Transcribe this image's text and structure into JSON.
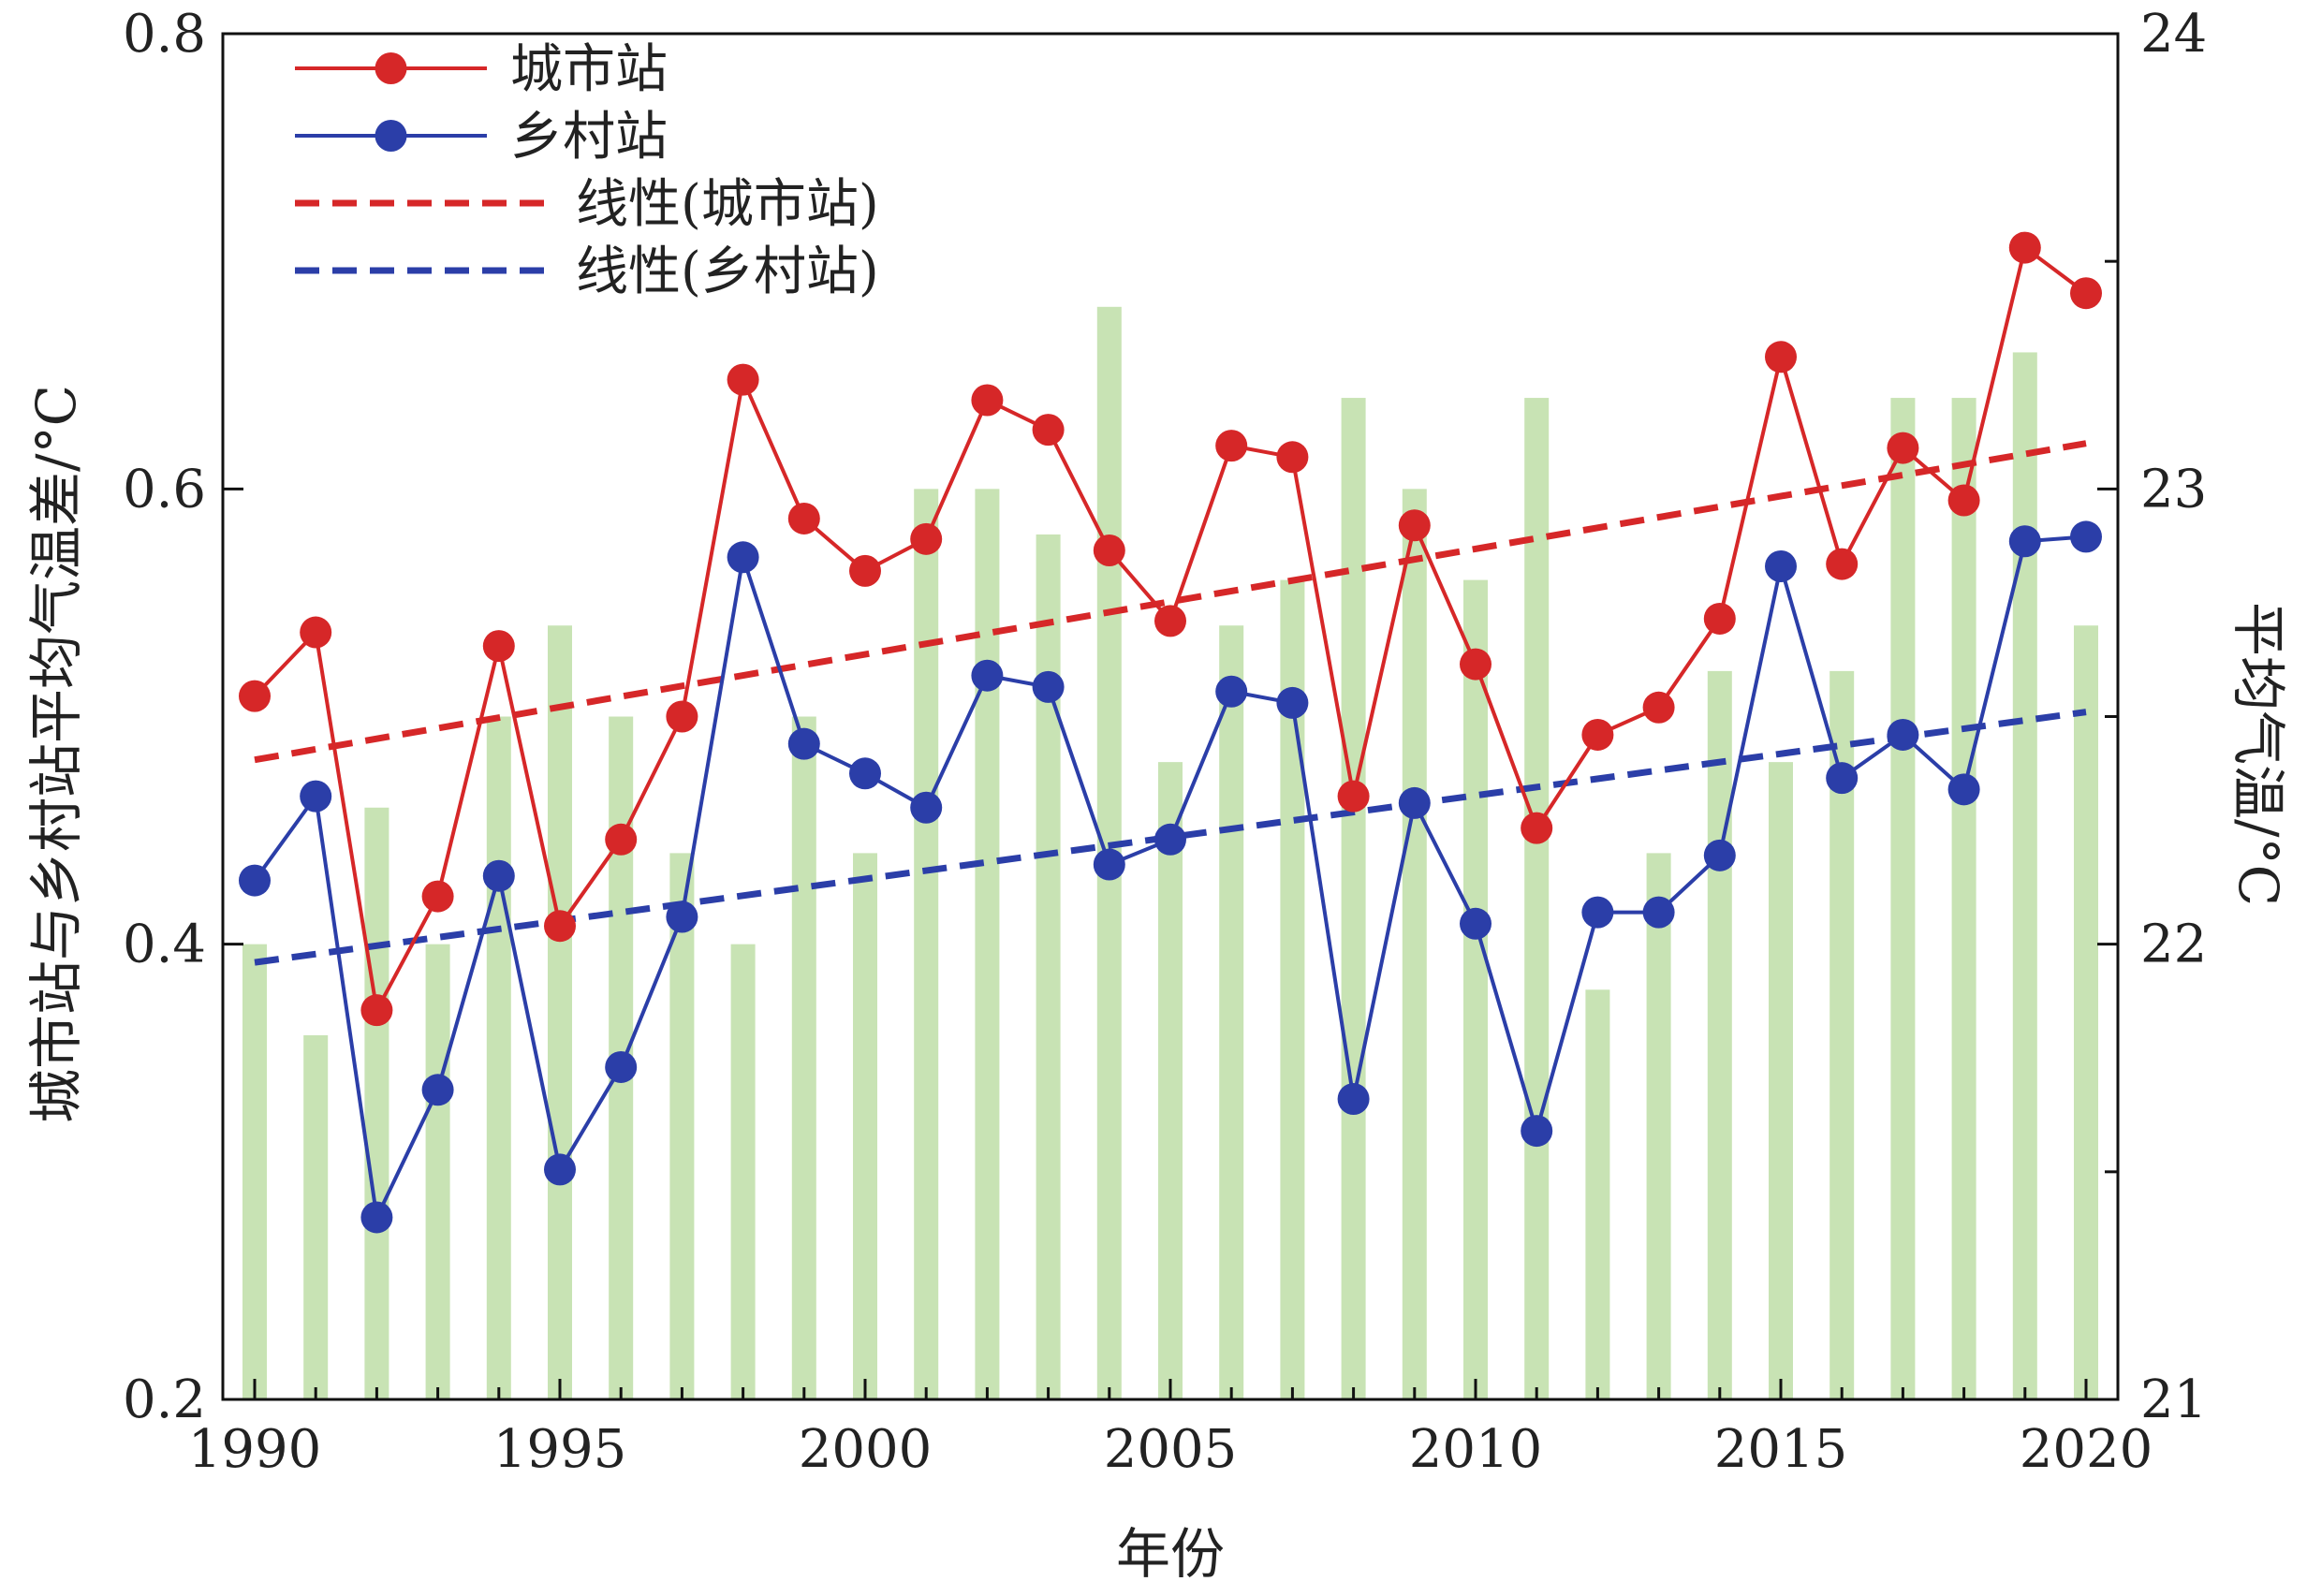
{
  "chart_data": {
    "type": "bar+line",
    "xlabel": "年份",
    "ylabel_left": "城市站与乡村站平均气温差/°C",
    "ylabel_right": "平均气温/°C",
    "x_range": [
      1990,
      2020
    ],
    "x_ticks": [
      1990,
      1995,
      2000,
      2005,
      2010,
      2015,
      2020
    ],
    "left_axis": {
      "range": [
        0.2,
        0.8
      ],
      "ticks": [
        0.2,
        0.4,
        0.6,
        0.8
      ],
      "tick_labels": [
        "0.2",
        "0.4",
        "0.6",
        "0.8"
      ]
    },
    "right_axis": {
      "range": [
        21,
        24
      ],
      "ticks": [
        21,
        22,
        23,
        24
      ],
      "minor_ticks": [
        21.5,
        22.5,
        23.5
      ],
      "tick_labels": [
        "21",
        "22",
        "23",
        "24"
      ]
    },
    "years": [
      1990,
      1991,
      1992,
      1993,
      1994,
      1995,
      1996,
      1997,
      1998,
      1999,
      2000,
      2001,
      2002,
      2003,
      2004,
      2005,
      2006,
      2007,
      2008,
      2009,
      2010,
      2011,
      2012,
      2013,
      2014,
      2015,
      2016,
      2017,
      2018,
      2019,
      2020
    ],
    "bars": {
      "name": "平均气温",
      "axis": "right",
      "color": "#c8e3b4",
      "values": [
        22.0,
        21.8,
        22.3,
        22.0,
        22.5,
        22.7,
        22.5,
        22.2,
        22.0,
        22.5,
        22.2,
        23.0,
        23.0,
        22.9,
        23.4,
        22.4,
        22.7,
        22.8,
        23.2,
        23.0,
        22.8,
        23.2,
        21.9,
        22.2,
        22.6,
        22.4,
        22.6,
        23.2,
        23.2,
        23.3,
        22.7
      ]
    },
    "series": [
      {
        "name": "城市站",
        "axis": "left",
        "color": "#d62728",
        "style": "line-marker",
        "values": [
          0.509,
          0.537,
          0.371,
          0.421,
          0.531,
          0.408,
          0.446,
          0.5,
          0.648,
          0.587,
          0.564,
          0.578,
          0.639,
          0.626,
          0.573,
          0.542,
          0.619,
          0.614,
          0.465,
          0.584,
          0.523,
          0.451,
          0.492,
          0.504,
          0.543,
          0.658,
          0.567,
          0.618,
          0.595,
          0.706,
          0.686
        ]
      },
      {
        "name": "乡村站",
        "axis": "left",
        "color": "#2b3ea8",
        "style": "line-marker",
        "values": [
          0.428,
          0.465,
          0.28,
          0.336,
          0.43,
          0.301,
          0.346,
          0.412,
          0.57,
          0.488,
          0.475,
          0.46,
          0.518,
          0.513,
          0.435,
          0.446,
          0.511,
          0.506,
          0.332,
          0.462,
          0.409,
          0.318,
          0.414,
          0.414,
          0.439,
          0.566,
          0.473,
          0.492,
          0.468,
          0.577,
          0.579
        ]
      }
    ],
    "trendlines": [
      {
        "name": "线性(城市站)",
        "axis": "left",
        "color": "#d62728",
        "style": "dashed",
        "start": [
          1990,
          0.481
        ],
        "end": [
          2020,
          0.62
        ]
      },
      {
        "name": "线性(乡村站)",
        "axis": "left",
        "color": "#2b3ea8",
        "style": "dashed",
        "start": [
          1990,
          0.392
        ],
        "end": [
          2020,
          0.502
        ]
      }
    ],
    "legend": {
      "position": "top-left",
      "entries": [
        "城市站",
        "乡村站",
        "线性(城市站)",
        "线性(乡村站)"
      ]
    }
  }
}
